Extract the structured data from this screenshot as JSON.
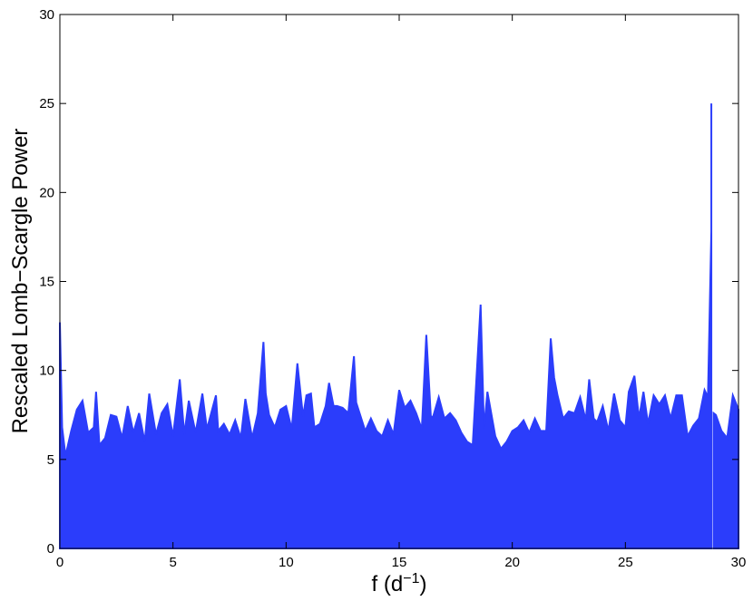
{
  "chart_data": {
    "type": "area-line",
    "xlabel": [
      "f (d",
      "−1",
      ")"
    ],
    "ylabel": "Rescaled Lomb−Scargle Power",
    "xlim": [
      0,
      30
    ],
    "ylim": [
      0,
      30
    ],
    "xticks": [
      0,
      5,
      10,
      15,
      20,
      25,
      30
    ],
    "yticks": [
      0,
      5,
      10,
      15,
      20,
      25,
      30
    ],
    "series": [
      {
        "color": "#2b3dfb",
        "x": [
          0,
          0.1,
          0.25,
          0.5,
          0.75,
          1,
          1.25,
          1.5,
          1.6,
          1.75,
          2,
          2.25,
          2.5,
          2.75,
          3,
          3.25,
          3.5,
          3.75,
          3.95,
          4.25,
          4.5,
          4.75,
          5,
          5.3,
          5.5,
          5.7,
          6,
          6.3,
          6.5,
          6.9,
          7,
          7.25,
          7.5,
          7.75,
          8,
          8.2,
          8.5,
          8.75,
          9,
          9.1,
          9.25,
          9.5,
          9.75,
          10,
          10.25,
          10.5,
          10.75,
          10.9,
          11.1,
          11.25,
          11.5,
          11.75,
          11.9,
          12.1,
          12.25,
          12.5,
          12.75,
          13,
          13.1,
          13.25,
          13.5,
          13.75,
          14,
          14.25,
          14.5,
          14.75,
          15,
          15.25,
          15.5,
          15.75,
          16,
          16.2,
          16.4,
          16.5,
          16.75,
          17,
          17.25,
          17.5,
          17.75,
          18,
          18.25,
          18.6,
          18.75,
          18.9,
          19.25,
          19.5,
          19.75,
          20,
          20.25,
          20.5,
          20.75,
          21,
          21.25,
          21.5,
          21.7,
          21.85,
          22,
          22.25,
          22.5,
          22.75,
          23,
          23.25,
          23.4,
          23.6,
          23.75,
          24,
          24.25,
          24.5,
          24.75,
          25,
          25.15,
          25.4,
          25.6,
          25.8,
          26,
          26.25,
          26.5,
          26.75,
          27,
          27.25,
          27.5,
          27.75,
          28,
          28.25,
          28.5,
          28.65,
          28.8,
          28.8,
          28.8,
          28.8,
          28.8,
          28.9,
          29,
          29.25,
          29.5,
          29.75,
          30
        ],
        "values": [
          12.7,
          6.8,
          5.2,
          6.6,
          7.8,
          8.3,
          6.5,
          6.8,
          8.8,
          5.8,
          6.2,
          7.5,
          7.4,
          6.2,
          8.0,
          6.5,
          7.6,
          6.0,
          8.7,
          6.4,
          7.6,
          8.1,
          6.3,
          9.5,
          6.4,
          8.3,
          6.5,
          8.7,
          6.7,
          8.6,
          6.6,
          7.0,
          6.4,
          7.2,
          6.2,
          8.4,
          6.2,
          7.6,
          11.6,
          8.7,
          7.5,
          6.8,
          7.8,
          8.0,
          6.7,
          10.4,
          7.4,
          8.6,
          8.7,
          6.8,
          7.0,
          8.0,
          9.3,
          8.0,
          8.0,
          7.9,
          7.6,
          10.8,
          8.2,
          7.6,
          6.6,
          7.3,
          6.6,
          6.3,
          7.2,
          6.4,
          8.9,
          7.9,
          8.3,
          7.6,
          6.7,
          12.0,
          7.4,
          7.4,
          8.5,
          7.3,
          7.6,
          7.2,
          6.5,
          6.0,
          5.8,
          13.7,
          6.7,
          8.8,
          6.3,
          5.6,
          6.0,
          6.6,
          6.8,
          7.2,
          6.5,
          7.3,
          6.6,
          6.6,
          11.8,
          9.6,
          8.6,
          7.3,
          7.7,
          7.6,
          8.5,
          7.2,
          9.5,
          7.3,
          7.1,
          8.0,
          6.6,
          8.7,
          7.2,
          6.8,
          8.8,
          9.7,
          7.3,
          8.8,
          7.0,
          8.6,
          8.1,
          8.6,
          7.3,
          8.6,
          8.6,
          6.3,
          6.9,
          7.3,
          8.9,
          8.5,
          17.8,
          null,
          22,
          25,
          null,
          7.6,
          7.5,
          6.6,
          6.2,
          8.6,
          7.8
        ]
      }
    ]
  }
}
